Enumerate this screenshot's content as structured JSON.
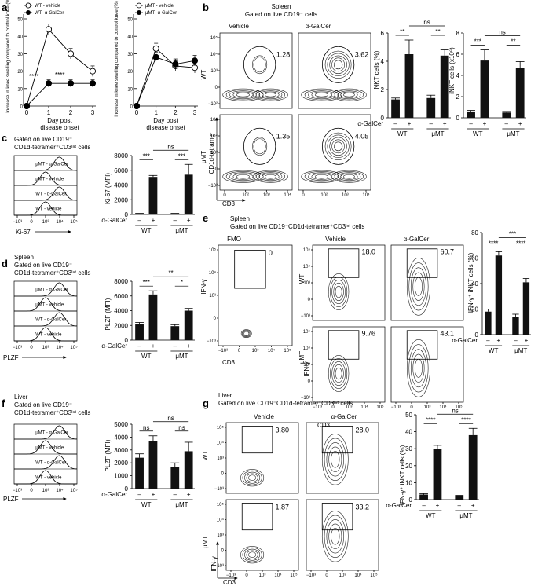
{
  "panels": {
    "a": {
      "letter": "a",
      "ylabel": "Increase in knee swelling compared to control knee (%)",
      "xlabel1": "Day post",
      "xlabel2": "disease onset",
      "left": {
        "legend": [
          "WT - vehicle",
          "WT -α-GalCer"
        ],
        "sig": [
          "****",
          "****"
        ],
        "yticks": [
          "0",
          "10",
          "20",
          "30",
          "40",
          "50"
        ],
        "xticks": [
          "0",
          "1",
          "2",
          "3"
        ]
      },
      "right": {
        "legend": [
          "μMT - vehicle",
          "μMT -α-GalCer"
        ],
        "yticks": [
          "0",
          "10",
          "20",
          "30",
          "40",
          "50"
        ],
        "xticks": [
          "0",
          "1",
          "2",
          "3"
        ]
      }
    },
    "b": {
      "letter": "b",
      "title1": "Spleen",
      "title2": "Gated on live CD19⁻ cells",
      "col_vehicle": "Vehicle",
      "col_galcer": "α-GalCer",
      "row_wt": "WT",
      "row_umt": "μMT",
      "ylabel": "CD1d-tetramer",
      "xlabel": "CD3",
      "gate_values": [
        "1.28",
        "3.62",
        "1.35",
        "4.05"
      ],
      "bar1_ylabel": "iNKT cells (%)",
      "bar2_ylabel": "iNKT cells (x10⁶)",
      "bar1_sig": [
        "**",
        "ns",
        "**"
      ],
      "bar2_sig": [
        "***",
        "ns",
        "**"
      ]
    },
    "c": {
      "letter": "c",
      "title1": "Gated on live CD19⁻",
      "title2": "CD1d-tetramer⁺CD3ᴵⁿᵗ cells",
      "hist_labels": [
        "μMT - α-GalCer",
        "μMT - vehicle",
        "WT - α-GalCer",
        "WT - vehicle"
      ],
      "xlabel": "Ki-67",
      "bar_ylabel": "Ki-67 (MFI)",
      "sig": [
        "***",
        "ns",
        "***"
      ]
    },
    "d": {
      "letter": "d",
      "title1": "Spleen",
      "title2": "Gated on live CD19⁻",
      "title3": "CD1d-tetramer⁺CD3ᴵⁿᵗ cells",
      "hist_labels": [
        "μMT - α-GalCer",
        "μMT - vehicle",
        "WT - α-GalCer",
        "WT - vehicle"
      ],
      "xlabel": "PLZF",
      "bar_ylabel": "PLZF (MFI)",
      "sig": [
        "***",
        "**",
        "*"
      ]
    },
    "e": {
      "letter": "e",
      "title1": "Spleen",
      "title2": "Gated on live CD19⁻CD1d-tetramer⁺CD3ᴵⁿᵗ cells",
      "col_fmo": "FMO",
      "col_vehicle": "Vehicle",
      "col_galcer": "α-GalCer",
      "row_wt": "WT",
      "row_umt": "μMT",
      "ylabel": "IFN-γ",
      "xlabel": "CD3",
      "gate_values": [
        "0",
        "18.0",
        "60.7",
        "9.76",
        "43.1"
      ],
      "bar_ylabel": "IFN-γ⁺ iNKT cells (%)",
      "sig": [
        "****",
        "***",
        "****"
      ]
    },
    "f": {
      "letter": "f",
      "title1": "Liver",
      "title2": "Gated on live CD19⁻",
      "title3": "CD1d-tetramer⁺CD3ᴵⁿᵗ cells",
      "hist_labels": [
        "μMT - α-GalCer",
        "μMT - vehicle",
        "WT - α-GalCer",
        "WT - vehicle"
      ],
      "xlabel": "PLZF",
      "bar_ylabel": "PLZF (MFI)",
      "sig": [
        "ns",
        "ns",
        "ns"
      ]
    },
    "g": {
      "letter": "g",
      "title1": "Liver",
      "title2": "Gated on live CD19⁻CD1d-tetramer⁺CD3ᴵⁿᵗ cells",
      "col_vehicle": "Vehicle",
      "col_galcer": "α-GalCer",
      "row_wt": "WT",
      "row_umt": "μMT",
      "ylabel": "IFN-γ",
      "xlabel": "CD3",
      "gate_values": [
        "3.80",
        "28.0",
        "1.87",
        "33.2"
      ],
      "bar_ylabel": "IFN-γ⁺ iNKT cells (%)",
      "sig": [
        "****",
        "ns",
        "****"
      ]
    }
  },
  "common": {
    "galcer_row_label": "α-GalCer",
    "minus": "–",
    "plus": "+",
    "group_wt": "WT",
    "group_umt": "μMT",
    "flow_ticks_y": [
      "10⁵",
      "10⁴",
      "10³",
      "0",
      "−10³"
    ],
    "flow_ticks_x": [
      "−10³",
      "0",
      "10³",
      "10⁴",
      "10⁵"
    ],
    "flow_ticks_y_b": [
      "10⁵",
      "10⁴",
      "10³",
      "0",
      "−10²"
    ],
    "flow_ticks_x_b": [
      "0",
      "10²",
      "10³",
      "10⁴"
    ]
  },
  "chart_data": [
    {
      "id": "a-left",
      "type": "line",
      "x": [
        0,
        1,
        2,
        3
      ],
      "series": [
        {
          "name": "WT - vehicle",
          "values": [
            0,
            44,
            30,
            20
          ],
          "err": [
            0,
            3,
            3,
            3
          ],
          "marker": "open"
        },
        {
          "name": "WT -α-GalCer",
          "values": [
            0,
            13,
            13,
            13
          ],
          "err": [
            0,
            2,
            2,
            2
          ],
          "marker": "filled"
        }
      ],
      "ylim": [
        0,
        50
      ]
    },
    {
      "id": "a-right",
      "type": "line",
      "x": [
        0,
        1,
        2,
        3
      ],
      "series": [
        {
          "name": "μMT - vehicle",
          "values": [
            0,
            33,
            23,
            22
          ],
          "err": [
            0,
            3,
            3,
            3
          ],
          "marker": "open"
        },
        {
          "name": "μMT -α-GalCer",
          "values": [
            0,
            28,
            24,
            26
          ],
          "err": [
            0,
            3,
            3,
            3
          ],
          "marker": "filled"
        }
      ],
      "ylim": [
        0,
        50
      ]
    },
    {
      "id": "b-pct",
      "type": "bar",
      "categories": [
        "WT -",
        "WT +",
        "μMT -",
        "μMT +"
      ],
      "values": [
        1.3,
        4.5,
        1.4,
        4.4
      ],
      "err": [
        0.1,
        1.0,
        0.2,
        0.4
      ],
      "ylim": [
        0,
        6
      ],
      "yticks": [
        0,
        2,
        4,
        6
      ]
    },
    {
      "id": "b-abs",
      "type": "bar",
      "categories": [
        "WT -",
        "WT +",
        "μMT -",
        "μMT +"
      ],
      "values": [
        0.6,
        5.4,
        0.5,
        4.7
      ],
      "err": [
        0.1,
        1.0,
        0.1,
        0.6
      ],
      "ylim": [
        0,
        8
      ],
      "yticks": [
        0,
        2,
        4,
        6,
        8
      ]
    },
    {
      "id": "c-bar",
      "type": "bar",
      "categories": [
        "WT -",
        "WT +",
        "μMT -",
        "μMT +"
      ],
      "values": [
        100,
        5100,
        100,
        5400
      ],
      "err": [
        50,
        200,
        50,
        1400
      ],
      "ylim": [
        0,
        8000
      ],
      "yticks": [
        0,
        2000,
        4000,
        6000,
        8000
      ]
    },
    {
      "id": "d-bar",
      "type": "bar",
      "categories": [
        "WT -",
        "WT +",
        "μMT -",
        "μMT +"
      ],
      "values": [
        2200,
        6200,
        1900,
        4000
      ],
      "err": [
        200,
        500,
        200,
        300
      ],
      "ylim": [
        0,
        8000
      ],
      "yticks": [
        0,
        2000,
        4000,
        6000,
        8000
      ]
    },
    {
      "id": "e-bar",
      "type": "bar",
      "categories": [
        "WT -",
        "WT +",
        "μMT -",
        "μMT +"
      ],
      "values": [
        18,
        62,
        14,
        41
      ],
      "err": [
        2,
        3,
        2,
        3
      ],
      "ylim": [
        0,
        80
      ],
      "yticks": [
        0,
        20,
        40,
        60,
        80
      ]
    },
    {
      "id": "f-bar",
      "type": "bar",
      "categories": [
        "WT -",
        "WT +",
        "μMT -",
        "μMT +"
      ],
      "values": [
        2400,
        3700,
        1700,
        2900
      ],
      "err": [
        300,
        400,
        300,
        700
      ],
      "ylim": [
        0,
        5000
      ],
      "yticks": [
        0,
        1000,
        2000,
        3000,
        4000,
        5000
      ]
    },
    {
      "id": "g-bar",
      "type": "bar",
      "categories": [
        "WT -",
        "WT +",
        "μMT -",
        "μMT +"
      ],
      "values": [
        3,
        30,
        2,
        38
      ],
      "err": [
        0.5,
        2,
        0.5,
        4
      ],
      "ylim": [
        0,
        50
      ],
      "yticks": [
        0,
        10,
        20,
        30,
        40,
        50
      ]
    }
  ]
}
